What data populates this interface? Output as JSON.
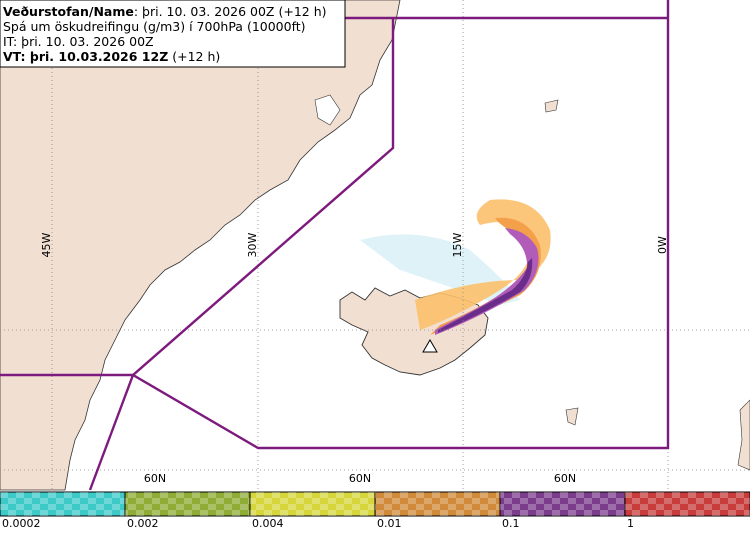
{
  "header": {
    "lines": [
      {
        "bold": "Veðurstofan/Name",
        "text": ": þri. 10. 03. 2026 00Z (+12 h)"
      },
      {
        "bold": "",
        "text": "Spá um öskudreifingu (g/m3) í 700hPa (10000ft)"
      },
      {
        "bold": "",
        "text": "IT: þri. 10. 03. 2026 00Z"
      },
      {
        "bold": "VT: þri. 10.03.2026 12Z",
        "text": " (+12 h)"
      }
    ]
  },
  "grid": {
    "meridians": [
      "45W",
      "30W",
      "15W",
      "0W"
    ],
    "parallels": [
      "60N",
      "60N",
      "60N"
    ]
  },
  "legend": {
    "labels": [
      "0.0002",
      "0.002",
      "0.004",
      "0.01",
      "0.1",
      "1"
    ],
    "colors": [
      "#3ec9c9",
      "#8fac34",
      "#d6d63c",
      "#d08a3a",
      "#7c3c8c",
      "#c83c3c"
    ]
  }
}
